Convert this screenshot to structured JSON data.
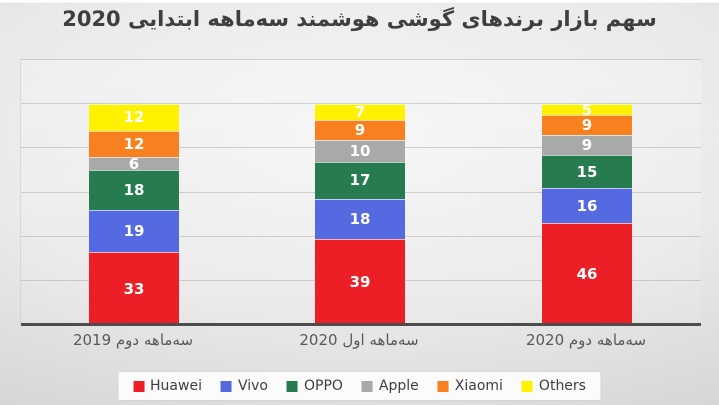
{
  "slide": {
    "title": "سهم بازار برندهای گوشی هوشمند سه‌ماهه ابتدایی 2020"
  },
  "chart_data": {
    "type": "bar",
    "stacked": true,
    "title": "سهم بازار برندهای گوشی هوشمند سه‌ماهه ابتدایی 2020",
    "categories": [
      "سه‌ماهه دوم 2019",
      "سه‌ماهه اول 2020",
      "سه‌ماهه دوم 2020"
    ],
    "series": [
      {
        "name": "Huawei",
        "color": "#ed1f26",
        "values": [
          33,
          39,
          46
        ]
      },
      {
        "name": "Vivo",
        "color": "#5569e1",
        "values": [
          19,
          18,
          16
        ]
      },
      {
        "name": "OPPO",
        "color": "#277c4f",
        "values": [
          18,
          17,
          15
        ]
      },
      {
        "name": "Apple",
        "color": "#a9a9a9",
        "values": [
          6,
          10,
          9
        ]
      },
      {
        "name": "Xiaomi",
        "color": "#f9801e",
        "values": [
          12,
          9,
          9
        ]
      },
      {
        "name": "Others",
        "color": "#fef200",
        "values": [
          12,
          7,
          5
        ]
      }
    ],
    "xlabel": "",
    "ylabel": "",
    "ylim": [
      0,
      120
    ],
    "grid_step": 20,
    "grid": true,
    "legend_position": "bottom",
    "value_labels": true,
    "value_label_color": "#ffffff"
  }
}
